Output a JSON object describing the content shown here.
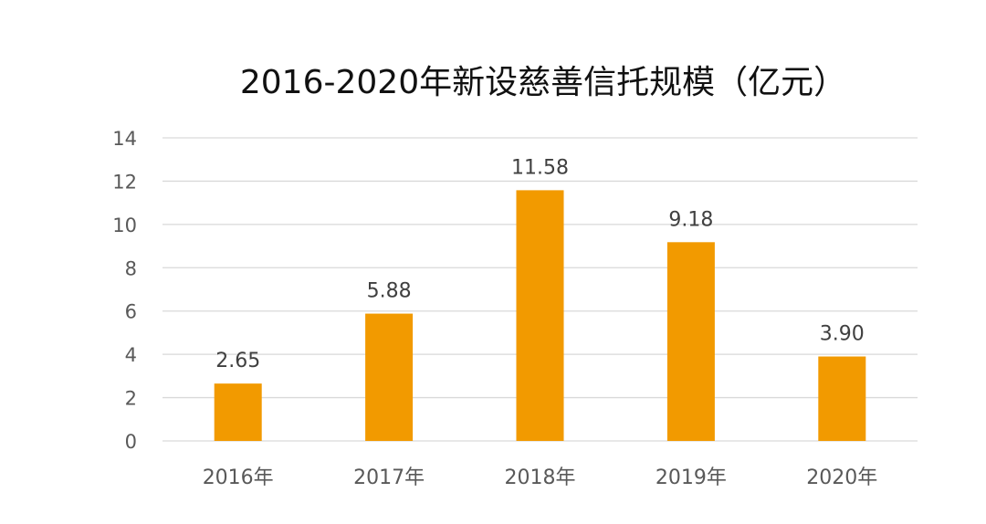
{
  "chart_data": {
    "type": "bar",
    "title": "2016-2020年新设慈善信托规模（亿元）",
    "categories": [
      "2016年",
      "2017年",
      "2018年",
      "2019年",
      "2020年"
    ],
    "values": [
      2.65,
      5.88,
      11.58,
      9.18,
      3.9
    ],
    "data_labels": [
      "2.65",
      "5.88",
      "11.58",
      "9.18",
      "3.90"
    ],
    "xlabel": "",
    "ylabel": "",
    "ylim": [
      0,
      14
    ],
    "yticks": [
      0,
      2,
      4,
      6,
      8,
      10,
      12,
      14
    ],
    "grid": true,
    "legend": "none",
    "bar_color": "#F29A00",
    "grid_color": "#D9D9D9"
  }
}
